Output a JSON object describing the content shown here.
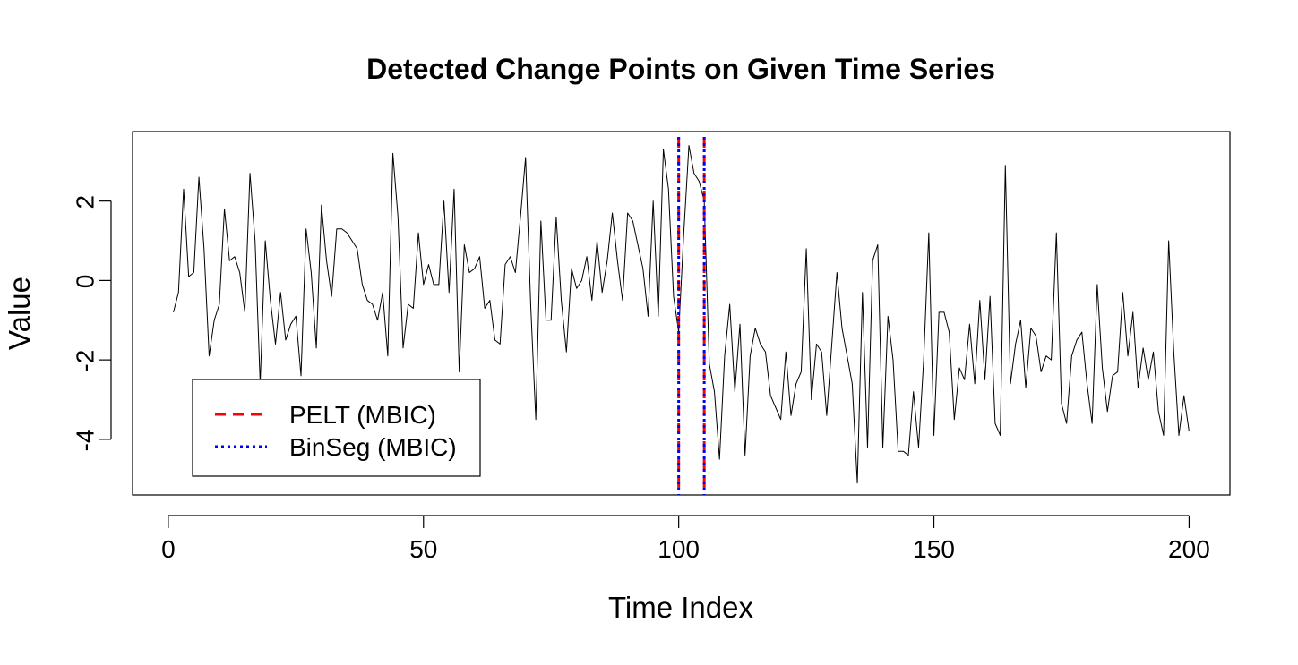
{
  "chart_data": {
    "type": "line",
    "title": "Detected Change Points on Given Time Series",
    "xlabel": "Time Index",
    "ylabel": "Value",
    "xlim": [
      -7,
      208
    ],
    "ylim": [
      -5.4,
      3.75
    ],
    "xticks": [
      0,
      50,
      100,
      150,
      200
    ],
    "yticks": [
      -4,
      -2,
      0,
      2
    ],
    "x_start": 1,
    "series": [
      {
        "color": "#000000",
        "values": [
          -0.8,
          -0.3,
          2.3,
          0.1,
          0.2,
          2.6,
          0.8,
          -1.9,
          -1.0,
          -0.6,
          1.8,
          0.5,
          0.6,
          0.2,
          -0.8,
          2.7,
          1.0,
          -2.6,
          1.0,
          -0.5,
          -1.6,
          -0.3,
          -1.5,
          -1.1,
          -0.9,
          -2.4,
          1.3,
          0.2,
          -1.7,
          1.9,
          0.5,
          -0.4,
          1.3,
          1.3,
          1.2,
          1.0,
          0.8,
          -0.1,
          -0.5,
          -0.6,
          -1.0,
          -0.3,
          -1.9,
          3.2,
          1.6,
          -1.7,
          -0.6,
          -0.7,
          1.2,
          -0.1,
          0.4,
          -0.1,
          -0.1,
          2.0,
          -0.3,
          2.3,
          -2.3,
          0.9,
          0.2,
          0.3,
          0.6,
          -0.7,
          -0.5,
          -1.5,
          -1.6,
          0.4,
          0.6,
          0.2,
          1.6,
          3.1,
          -0.6,
          -3.5,
          1.5,
          -1.0,
          -1.0,
          1.6,
          -0.5,
          -1.8,
          0.3,
          -0.2,
          0.0,
          0.6,
          -0.5,
          1.0,
          -0.3,
          0.5,
          1.7,
          0.5,
          -0.5,
          1.7,
          1.5,
          0.9,
          0.3,
          -0.9,
          2.0,
          -0.9,
          3.3,
          2.3,
          -0.4,
          -1.3,
          1.2,
          3.4,
          2.7,
          2.5,
          2.0,
          -2.1,
          -2.8,
          -4.5,
          -1.9,
          -0.6,
          -2.8,
          -1.1,
          -4.4,
          -1.9,
          -1.2,
          -1.6,
          -1.8,
          -2.9,
          -3.2,
          -3.5,
          -1.8,
          -3.4,
          -2.6,
          -2.3,
          0.8,
          -3.0,
          -1.6,
          -1.8,
          -3.4,
          -1.6,
          0.2,
          -1.2,
          -1.9,
          -2.6,
          -5.1,
          -0.3,
          -4.2,
          0.5,
          0.9,
          -4.2,
          -0.9,
          -2.0,
          -4.3,
          -4.3,
          -4.4,
          -2.8,
          -4.2,
          -2.0,
          1.2,
          -3.9,
          -0.8,
          -0.8,
          -1.3,
          -3.5,
          -2.2,
          -2.5,
          -1.1,
          -2.6,
          -0.5,
          -2.5,
          -0.4,
          -3.6,
          -3.9,
          2.9,
          -2.6,
          -1.6,
          -1.0,
          -2.7,
          -1.2,
          -1.4,
          -2.3,
          -1.9,
          -2.0,
          1.2,
          -3.1,
          -3.6,
          -1.9,
          -1.5,
          -1.3,
          -2.6,
          -3.6,
          -0.1,
          -2.2,
          -3.3,
          -2.4,
          -2.3,
          -0.3,
          -1.9,
          -0.8,
          -2.7,
          -1.7,
          -2.5,
          -1.8,
          -3.3,
          -3.9,
          1.0,
          -1.8,
          -3.9,
          -2.9,
          -3.8
        ]
      }
    ],
    "change_points": [
      {
        "method": "PELT (MBIC)",
        "x": [
          100,
          105
        ],
        "color": "#ff0000",
        "style": "dashed"
      },
      {
        "method": "BinSeg (MBIC)",
        "x": [
          100,
          105
        ],
        "color": "#0000ff",
        "style": "dotted"
      }
    ],
    "legend": {
      "position": "bottom-left",
      "entries": [
        {
          "label": "PELT (MBIC)",
          "color": "#ff0000",
          "style": "dashed"
        },
        {
          "label": "BinSeg (MBIC)",
          "color": "#0000ff",
          "style": "dotted"
        }
      ]
    },
    "grid": false
  }
}
